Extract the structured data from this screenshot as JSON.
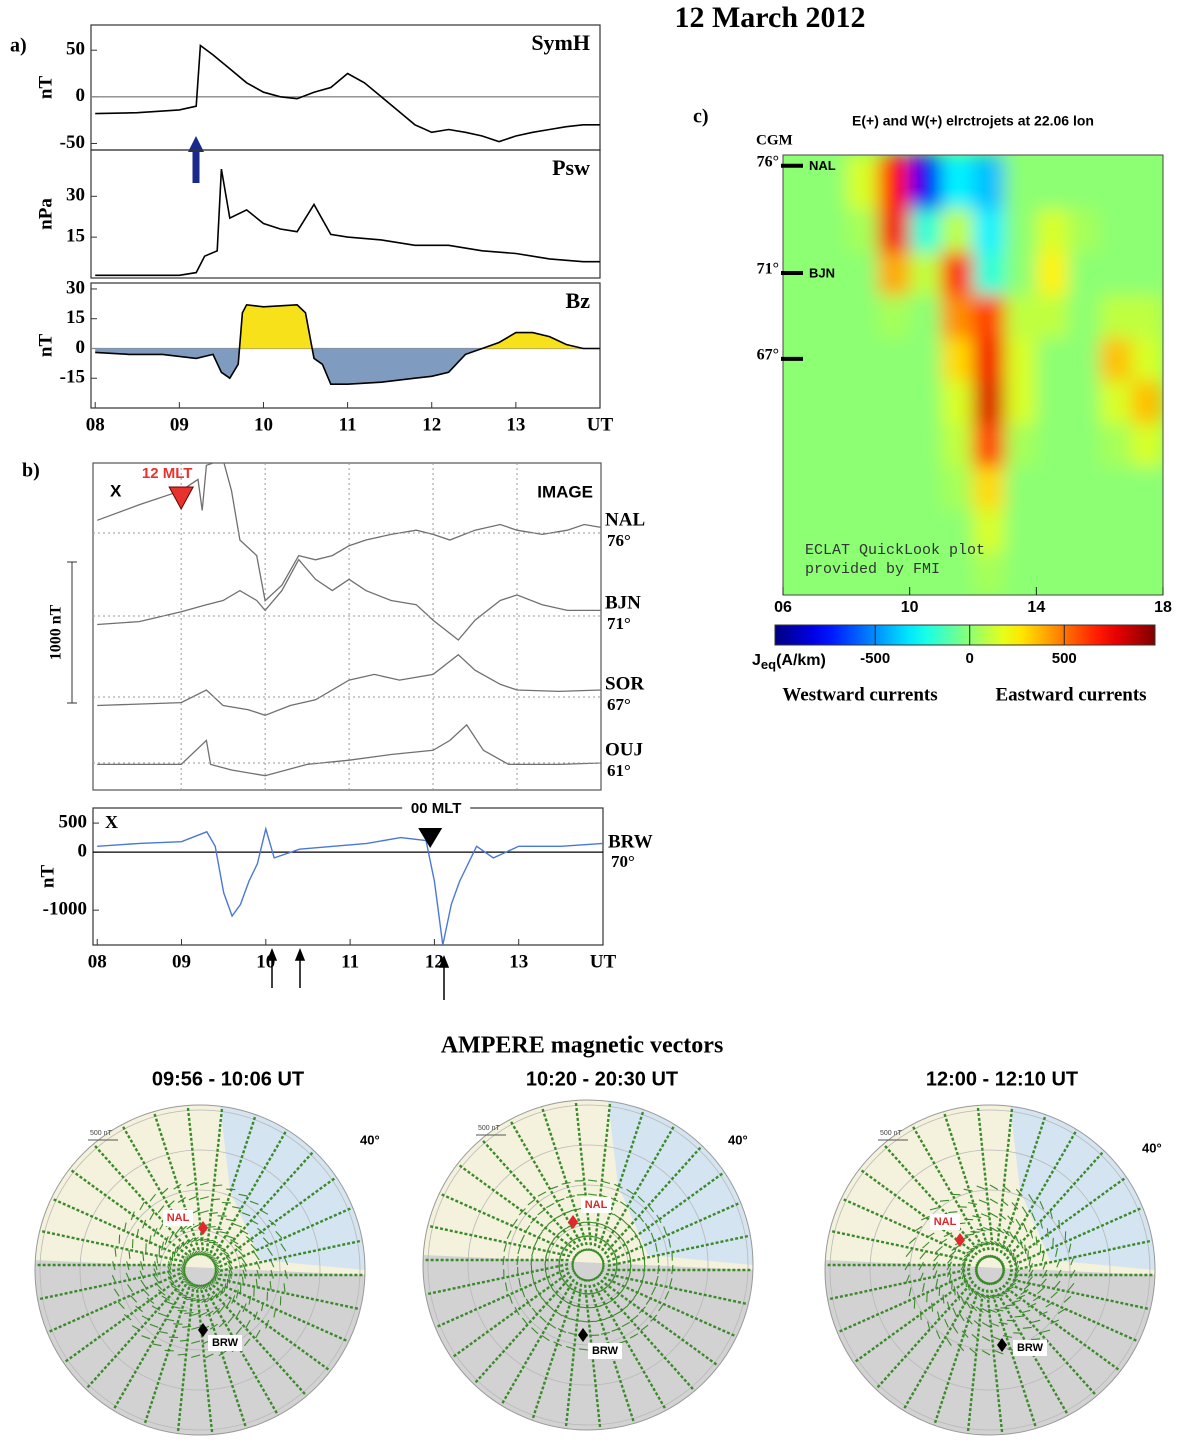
{
  "figure_title": "12 March 2012",
  "chart_data": [
    {
      "type": "line",
      "panel_label": "a)",
      "label": "SymH",
      "ylabel": "nT",
      "color": "#000000",
      "x": [
        8,
        8.5,
        9,
        9.2,
        9.25,
        9.4,
        9.6,
        9.8,
        10,
        10.2,
        10.4,
        10.6,
        10.8,
        11,
        11.2,
        11.4,
        11.6,
        11.8,
        12,
        12.2,
        12.4,
        12.6,
        12.8,
        13,
        13.2,
        13.4,
        13.6,
        13.8,
        14
      ],
      "values": [
        -18,
        -17,
        -14,
        -10,
        55,
        45,
        30,
        15,
        5,
        0,
        -2,
        5,
        10,
        25,
        15,
        0,
        -15,
        -30,
        -38,
        -35,
        -38,
        -42,
        -48,
        -42,
        -38,
        -35,
        -32,
        -30,
        -30
      ],
      "xlim": [
        7.95,
        14
      ],
      "ylim": [
        -57,
        77
      ],
      "yticks": [
        50,
        0,
        -50
      ],
      "zero_line": true
    },
    {
      "type": "line",
      "label": "Psw",
      "ylabel": "nPa",
      "color": "#000000",
      "x": [
        8,
        8.5,
        9,
        9.2,
        9.3,
        9.45,
        9.5,
        9.6,
        9.8,
        10,
        10.2,
        10.4,
        10.6,
        10.8,
        11,
        11.4,
        11.8,
        12.2,
        12.6,
        13,
        13.4,
        13.8,
        14
      ],
      "values": [
        1,
        1,
        1,
        2,
        8,
        10,
        40,
        22,
        25,
        20,
        18,
        17,
        27,
        16,
        15,
        14,
        12,
        12,
        10,
        9,
        7,
        6,
        6
      ],
      "xlim": [
        7.95,
        14
      ],
      "ylim": [
        0,
        47
      ],
      "yticks": [
        30,
        15
      ]
    },
    {
      "type": "area",
      "label": "Bz",
      "ylabel": "nT",
      "color": "#000000",
      "positive_color": "#f7e11b",
      "negative_color": "#7f9cc0",
      "x": [
        8,
        8.4,
        8.8,
        9.2,
        9.4,
        9.5,
        9.6,
        9.7,
        9.75,
        9.8,
        10,
        10.4,
        10.5,
        10.6,
        10.7,
        10.8,
        11,
        11.4,
        11.8,
        12,
        12.2,
        12.4,
        12.6,
        12.8,
        13,
        13.2,
        13.4,
        13.6,
        13.8,
        14
      ],
      "values": [
        -2,
        -3,
        -3,
        -5,
        -3,
        -12,
        -15,
        -8,
        18,
        22,
        21,
        22,
        18,
        -5,
        -8,
        -18,
        -18,
        -17,
        -15,
        -14,
        -12,
        -3,
        0,
        3,
        8,
        8,
        6,
        2,
        0,
        0
      ],
      "xlim": [
        7.95,
        14
      ],
      "ylim": [
        -30,
        33
      ],
      "yticks": [
        30,
        15,
        0,
        -15
      ],
      "zero_line": true,
      "xticks": [
        {
          "value": 8,
          "label": "08"
        },
        {
          "value": 9,
          "label": "09"
        },
        10,
        11,
        12,
        13,
        {
          "value": 14,
          "label": "UT"
        }
      ]
    },
    {
      "type": "traces",
      "panel_label": "b)",
      "label": "IMAGE",
      "component": "X",
      "annotation": {
        "text": "12 MLT",
        "x": 9.0,
        "color": "#e8322e"
      },
      "scale_bar": {
        "value": 1000,
        "label": "1000 nT"
      },
      "xlim": [
        7.95,
        14
      ],
      "xticks": [
        9,
        10,
        11,
        12,
        13
      ],
      "series": [
        {
          "name": "NAL",
          "latitude": "76°",
          "color": "#707070",
          "x": [
            8,
            8.5,
            9,
            9.2,
            9.25,
            9.3,
            9.5,
            9.6,
            9.7,
            9.9,
            10,
            10.2,
            10.4,
            10.6,
            10.8,
            11,
            11.2,
            11.5,
            11.8,
            12,
            12.2,
            12.5,
            12.8,
            13,
            13.3,
            13.6,
            13.8,
            14
          ],
          "values": [
            90,
            200,
            300,
            380,
            160,
            480,
            520,
            300,
            -50,
            -160,
            -480,
            -370,
            -160,
            -190,
            -160,
            -90,
            -50,
            -10,
            20,
            -10,
            -50,
            20,
            60,
            20,
            -10,
            20,
            60,
            40
          ]
        },
        {
          "name": "BJN",
          "latitude": "71°",
          "color": "#707070",
          "x": [
            8,
            8.5,
            9,
            9.3,
            9.5,
            9.7,
            9.9,
            10,
            10.2,
            10.4,
            10.6,
            10.8,
            11,
            11.2,
            11.5,
            11.8,
            12,
            12.3,
            12.5,
            12.8,
            13,
            13.3,
            13.6,
            14
          ],
          "values": [
            -60,
            -40,
            30,
            80,
            110,
            180,
            110,
            40,
            180,
            400,
            260,
            180,
            260,
            180,
            110,
            80,
            -30,
            -170,
            -30,
            110,
            150,
            80,
            40,
            40
          ]
        },
        {
          "name": "SOR",
          "latitude": "67°",
          "color": "#707070",
          "x": [
            8,
            9,
            9.3,
            9.5,
            9.8,
            10,
            10.3,
            10.6,
            11,
            11.3,
            11.6,
            12,
            12.3,
            12.5,
            12.8,
            13,
            13.5,
            14
          ],
          "values": [
            -60,
            -40,
            50,
            -60,
            -90,
            -130,
            -60,
            -20,
            120,
            160,
            120,
            160,
            300,
            190,
            90,
            50,
            40,
            50
          ]
        },
        {
          "name": "OUJ",
          "latitude": "61°",
          "color": "#707070",
          "x": [
            8,
            9,
            9.3,
            9.35,
            9.6,
            10,
            10.5,
            11,
            11.5,
            12,
            12.2,
            12.4,
            12.6,
            12.9,
            13.5,
            14
          ],
          "values": [
            -10,
            -10,
            160,
            -10,
            -50,
            -90,
            -10,
            20,
            60,
            90,
            160,
            270,
            90,
            -10,
            -10,
            0
          ]
        }
      ]
    },
    {
      "type": "line",
      "component": "X",
      "ylabel": "nT",
      "annotation": {
        "text": "00 MLT",
        "x": 11.95,
        "color": "#000000"
      },
      "series": [
        {
          "name": "BRW",
          "latitude": "70°",
          "color": "#4a78d8",
          "x": [
            8,
            8.5,
            9,
            9.3,
            9.4,
            9.5,
            9.6,
            9.7,
            9.8,
            9.9,
            10,
            10.1,
            10.4,
            10.8,
            11.2,
            11.6,
            11.9,
            12,
            12.1,
            12.2,
            12.3,
            12.5,
            12.7,
            13,
            13.5,
            14
          ],
          "values": [
            100,
            150,
            180,
            350,
            100,
            -700,
            -1100,
            -900,
            -500,
            -200,
            400,
            -100,
            50,
            100,
            150,
            250,
            200,
            -500,
            -1600,
            -900,
            -500,
            100,
            -100,
            100,
            100,
            150
          ]
        }
      ],
      "xlim": [
        7.95,
        14
      ],
      "ylim": [
        -1600,
        760
      ],
      "yticks": [
        500,
        0,
        -1000
      ],
      "zero_line": true,
      "xticks": [
        {
          "value": 8,
          "label": "08"
        },
        {
          "value": 9,
          "label": "09"
        },
        10,
        11,
        12,
        13,
        {
          "value": 14,
          "label": "UT"
        }
      ]
    },
    {
      "type": "heatmap",
      "panel_label": "c)",
      "title": "E(+) and W(+) elrctrojets at 22.06 lon",
      "ylabel": "CGM",
      "x_edges": [
        6,
        7,
        8,
        9,
        10,
        11,
        12,
        13,
        14,
        15,
        16,
        17,
        18
      ],
      "y_edges": [
        56,
        58,
        60,
        62,
        64,
        66,
        68,
        70,
        72,
        74,
        76.5
      ],
      "z": [
        [
          0,
          0,
          0,
          0,
          0,
          0,
          50,
          0,
          0,
          0,
          0,
          0
        ],
        [
          0,
          0,
          0,
          0,
          0,
          0,
          150,
          0,
          0,
          0,
          0,
          0
        ],
        [
          0,
          0,
          0,
          0,
          0,
          50,
          300,
          0,
          0,
          0,
          0,
          0
        ],
        [
          0,
          0,
          0,
          0,
          0,
          100,
          600,
          50,
          0,
          0,
          50,
          150
        ],
        [
          0,
          0,
          0,
          0,
          0,
          150,
          800,
          150,
          0,
          0,
          150,
          350
        ],
        [
          0,
          0,
          0,
          0,
          0,
          300,
          750,
          150,
          0,
          0,
          350,
          150
        ],
        [
          0,
          0,
          0,
          50,
          0,
          450,
          600,
          100,
          100,
          0,
          100,
          100
        ],
        [
          0,
          0,
          0,
          400,
          100,
          650,
          -200,
          0,
          250,
          0,
          0,
          0
        ],
        [
          0,
          0,
          50,
          750,
          -200,
          100,
          -300,
          0,
          150,
          50,
          0,
          0
        ],
        [
          0,
          0,
          150,
          700,
          -800,
          -300,
          -400,
          0,
          0,
          0,
          0,
          0
        ]
      ],
      "xlim": [
        6,
        18
      ],
      "ylim": [
        56,
        76.5
      ],
      "xticks": [
        {
          "value": 6,
          "label": "06"
        },
        10,
        14,
        18
      ],
      "yticks": [
        {
          "value": 76,
          "label": "76°"
        },
        {
          "value": 71,
          "label": "71°"
        },
        {
          "value": 67,
          "label": "67°"
        }
      ],
      "ytick_stations": [
        "NAL",
        "BJN",
        null
      ],
      "colormap": "jet",
      "clim": [
        -1030,
        980
      ],
      "colorbar_ticks": [
        -500,
        0,
        500
      ],
      "colorbar_label": {
        "symbol": "J",
        "subscript": "eq",
        "unit": "(A/km)"
      },
      "colorbar_captions": [
        "Westward currents",
        "Eastward currents"
      ],
      "note": [
        "ECLAT QuickLook plot",
        "provided by FMI"
      ]
    }
  ],
  "ampere": {
    "title": "AMPERE magnetic vectors",
    "plots": [
      {
        "time": "09:56 - 10:06 UT",
        "scale_label": "500 nT",
        "lat_label": "40°",
        "stations": [
          "NAL",
          "BRW"
        ]
      },
      {
        "time": "10:20 - 20:30 UT",
        "scale_label": "500 nT",
        "lat_label": "40°",
        "stations": [
          "NAL",
          "BRW"
        ]
      },
      {
        "time": "12:00 - 12:10 UT",
        "scale_label": "500 nT",
        "lat_label": "40°",
        "stations": [
          "NAL",
          "BRW"
        ]
      }
    ]
  }
}
